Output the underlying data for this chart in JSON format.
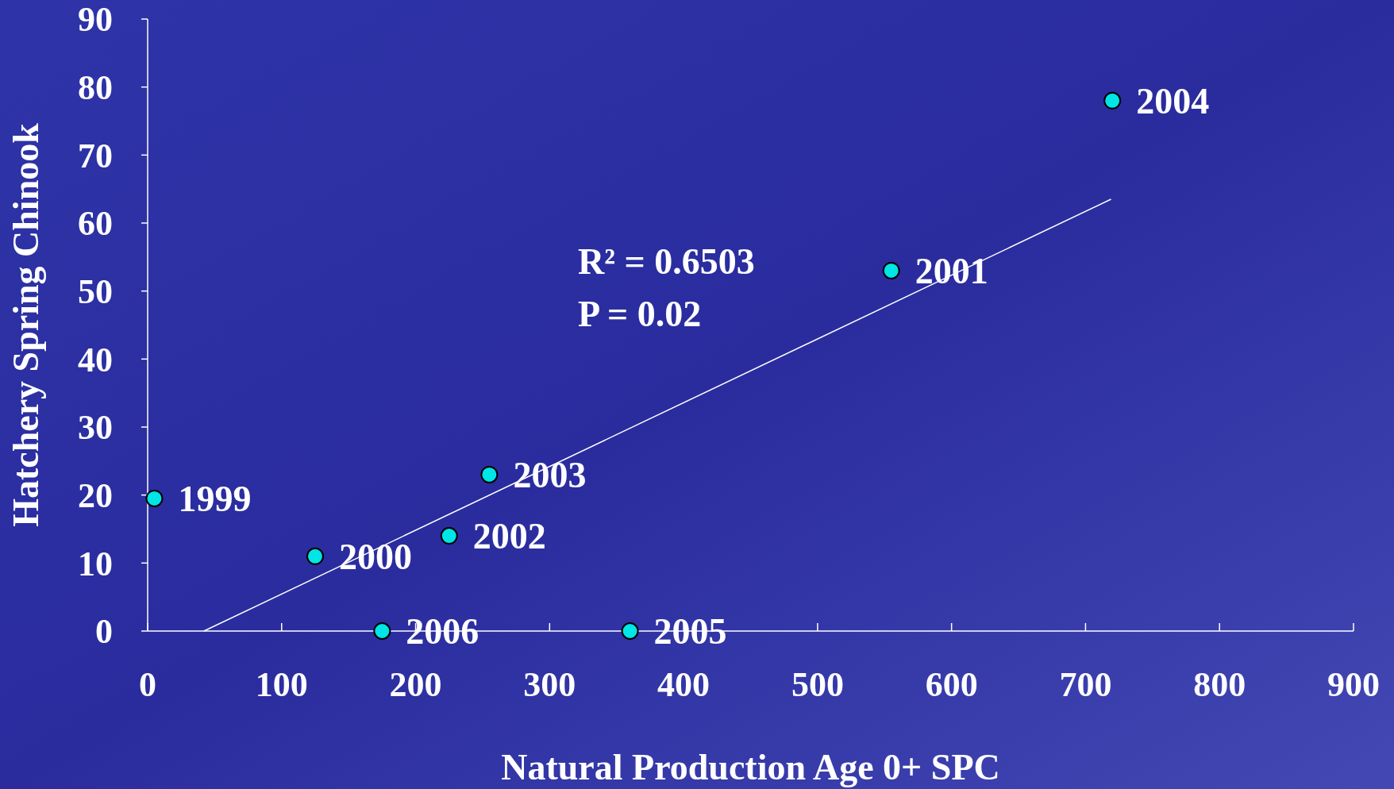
{
  "chart_data": {
    "type": "scatter",
    "xlabel": "Natural Production Age 0+ SPC",
    "ylabel": "Hatchery Spring Chinook",
    "x": [
      5,
      125,
      175,
      225,
      255,
      360,
      555,
      720
    ],
    "series": [
      {
        "color": "#00e5e5",
        "marker": "circle",
        "values": [
          19.5,
          11,
          0,
          14,
          23,
          0,
          53,
          78
        ]
      },
      {
        "type": "line",
        "color": "#ffffff",
        "x": [
          42,
          719
        ],
        "values": [
          0,
          63.5
        ]
      }
    ],
    "xlim": [
      0,
      900
    ],
    "ylim": [
      0,
      90
    ],
    "xticks": [
      0,
      100,
      200,
      300,
      400,
      500,
      600,
      700,
      800,
      900
    ],
    "yticks": [
      0,
      10,
      20,
      30,
      40,
      50,
      60,
      70,
      80,
      90
    ],
    "annotations": [
      {
        "text": "1999",
        "x": 5,
        "y": 19.5
      },
      {
        "text": "2000",
        "x": 125,
        "y": 11
      },
      {
        "text": "2006",
        "x": 175,
        "y": 0
      },
      {
        "text": "2002",
        "x": 225,
        "y": 14
      },
      {
        "text": "2003",
        "x": 255,
        "y": 23
      },
      {
        "text": "2005",
        "x": 360,
        "y": 0
      },
      {
        "text": "2001",
        "x": 555,
        "y": 53
      },
      {
        "text": "2004",
        "x": 720,
        "y": 78
      },
      "R² = 0.6503",
      "P = 0.02"
    ]
  }
}
